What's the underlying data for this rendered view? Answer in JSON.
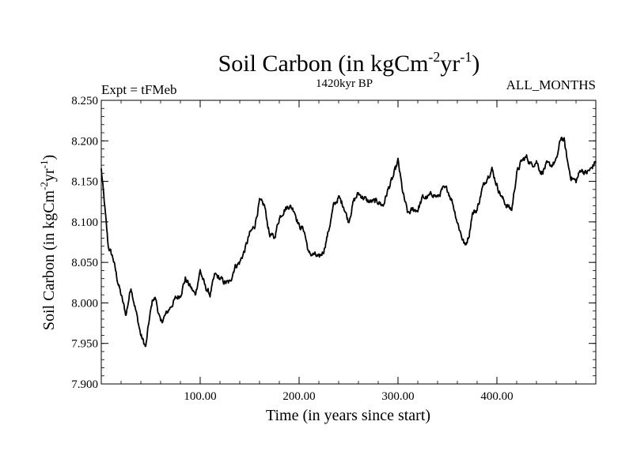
{
  "chart_data": {
    "type": "line",
    "title": {
      "main": "Soil Carbon (in kgCm",
      "sup1": "-2",
      "mid": "yr",
      "sup2": "-1",
      "end": ")"
    },
    "ylabel": {
      "main": "Soil Carbon (in kgCm",
      "sup1": "-2",
      "mid": "yr",
      "sup2": "-1",
      "end": ")"
    },
    "subtitle_left": "Expt = tFMeb",
    "subtitle_center": "1420kyr BP",
    "subtitle_right": "ALL_MONTHS",
    "xlabel": "Time (in years since start)",
    "xlim": [
      0,
      500
    ],
    "ylim": [
      7.9,
      8.25
    ],
    "x_ticks": [
      100,
      200,
      300,
      400
    ],
    "x_tick_labels": [
      "100.00",
      "200.00",
      "300.00",
      "400.00"
    ],
    "y_ticks": [
      7.9,
      7.95,
      8.0,
      8.05,
      8.1,
      8.15,
      8.2,
      8.25
    ],
    "y_tick_labels": [
      "7.900",
      "7.950",
      "8.000",
      "8.050",
      "8.100",
      "8.150",
      "8.200",
      "8.250"
    ],
    "series": [
      {
        "name": "Soil Carbon",
        "color": "#000000",
        "x": [
          0,
          3,
          7,
          12,
          16,
          20,
          25,
          30,
          35,
          40,
          45,
          48,
          52,
          55,
          60,
          65,
          70,
          75,
          80,
          85,
          90,
          95,
          100,
          105,
          110,
          115,
          120,
          125,
          130,
          135,
          140,
          145,
          150,
          155,
          160,
          165,
          170,
          175,
          180,
          185,
          190,
          195,
          200,
          205,
          210,
          215,
          220,
          225,
          230,
          235,
          240,
          245,
          250,
          255,
          260,
          265,
          270,
          275,
          280,
          285,
          290,
          295,
          300,
          305,
          310,
          315,
          320,
          325,
          330,
          335,
          340,
          345,
          350,
          355,
          360,
          365,
          368,
          372,
          375,
          380,
          385,
          390,
          395,
          400,
          405,
          410,
          415,
          420,
          425,
          430,
          435,
          440,
          445,
          450,
          455,
          460,
          465,
          468,
          472,
          475,
          480,
          485,
          490,
          495,
          500
        ],
        "values": [
          8.165,
          8.125,
          8.07,
          8.055,
          8.03,
          8.01,
          7.985,
          8.02,
          7.99,
          7.96,
          7.945,
          7.975,
          8.005,
          8.005,
          7.975,
          7.985,
          7.995,
          8.005,
          8.01,
          8.03,
          8.02,
          8.01,
          8.04,
          8.02,
          8.01,
          8.035,
          8.03,
          8.025,
          8.025,
          8.045,
          8.05,
          8.065,
          8.085,
          8.095,
          8.125,
          8.12,
          8.085,
          8.08,
          8.105,
          8.115,
          8.12,
          8.115,
          8.095,
          8.09,
          8.06,
          8.06,
          8.055,
          8.065,
          8.09,
          8.12,
          8.13,
          8.12,
          8.1,
          8.125,
          8.135,
          8.13,
          8.125,
          8.125,
          8.125,
          8.12,
          8.14,
          8.155,
          8.175,
          8.135,
          8.11,
          8.115,
          8.115,
          8.13,
          8.13,
          8.135,
          8.13,
          8.14,
          8.14,
          8.125,
          8.1,
          8.08,
          8.07,
          8.085,
          8.11,
          8.115,
          8.14,
          8.155,
          8.165,
          8.145,
          8.13,
          8.12,
          8.115,
          8.16,
          8.175,
          8.18,
          8.17,
          8.175,
          8.16,
          8.17,
          8.17,
          8.175,
          8.205,
          8.2,
          8.17,
          8.155,
          8.15,
          8.165,
          8.16,
          8.165,
          8.175
        ]
      }
    ]
  }
}
